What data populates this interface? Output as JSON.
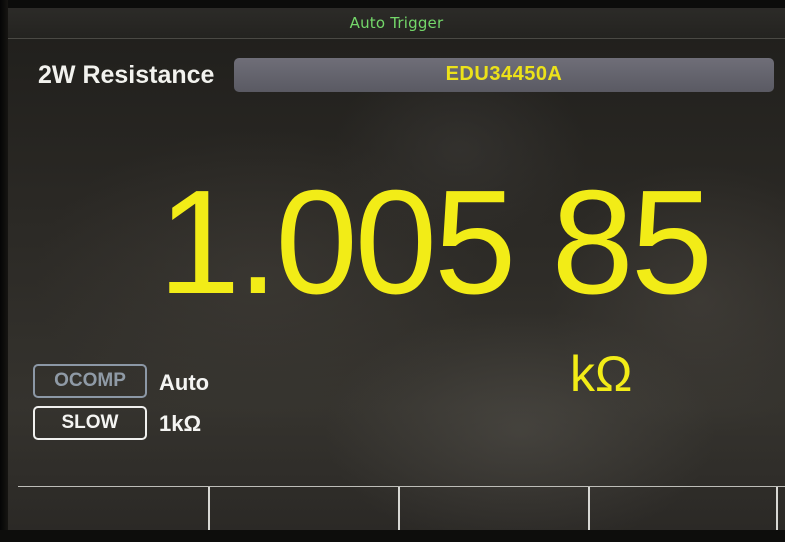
{
  "status_bar": {
    "trigger_mode": "Auto Trigger"
  },
  "header": {
    "function": "2W Resistance",
    "model": "EDU34450A"
  },
  "measurement": {
    "reading": "1.005 85",
    "unit": "kΩ",
    "color": "#f2ec17"
  },
  "indicators": [
    {
      "label": "OCOMP",
      "value": "Auto",
      "state": "inactive"
    },
    {
      "label": "SLOW",
      "value": "1kΩ",
      "state": "active"
    }
  ],
  "softkeys": [
    {
      "label": ""
    },
    {
      "label": ""
    },
    {
      "label": ""
    },
    {
      "label": ""
    }
  ]
}
